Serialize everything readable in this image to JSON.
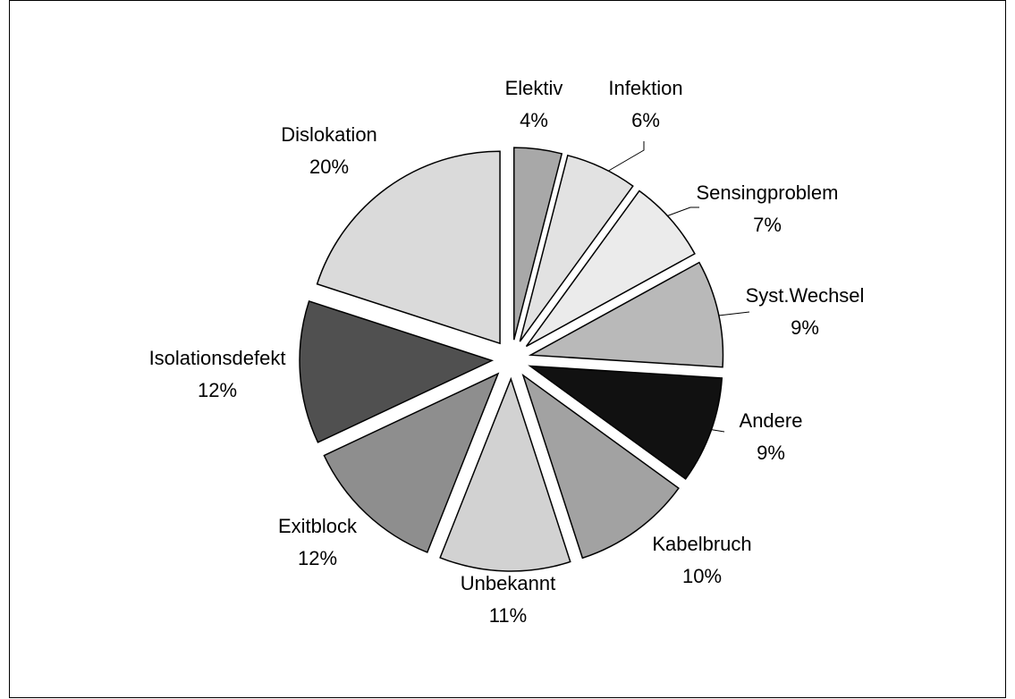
{
  "chart_data": {
    "type": "pie",
    "categories": [
      "Elektiv",
      "Infektion",
      "Sensingproblem",
      "Syst.Wechsel",
      "Andere",
      "Kabelbruch",
      "Unbekannt",
      "Exitblock",
      "Isolationsdefekt",
      "Dislokation"
    ],
    "values": [
      4,
      6,
      7,
      9,
      9,
      10,
      11,
      12,
      12,
      20
    ],
    "value_labels": [
      "4%",
      "6%",
      "7%",
      "9%",
      "9%",
      "10%",
      "11%",
      "12%",
      "12%",
      "20%"
    ],
    "colors": [
      "#a8a8a8",
      "#e2e2e2",
      "#ebebeb",
      "#b9b9b9",
      "#111111",
      "#a2a2a2",
      "#d2d2d2",
      "#8e8e8e",
      "#505050",
      "#dadada"
    ]
  }
}
